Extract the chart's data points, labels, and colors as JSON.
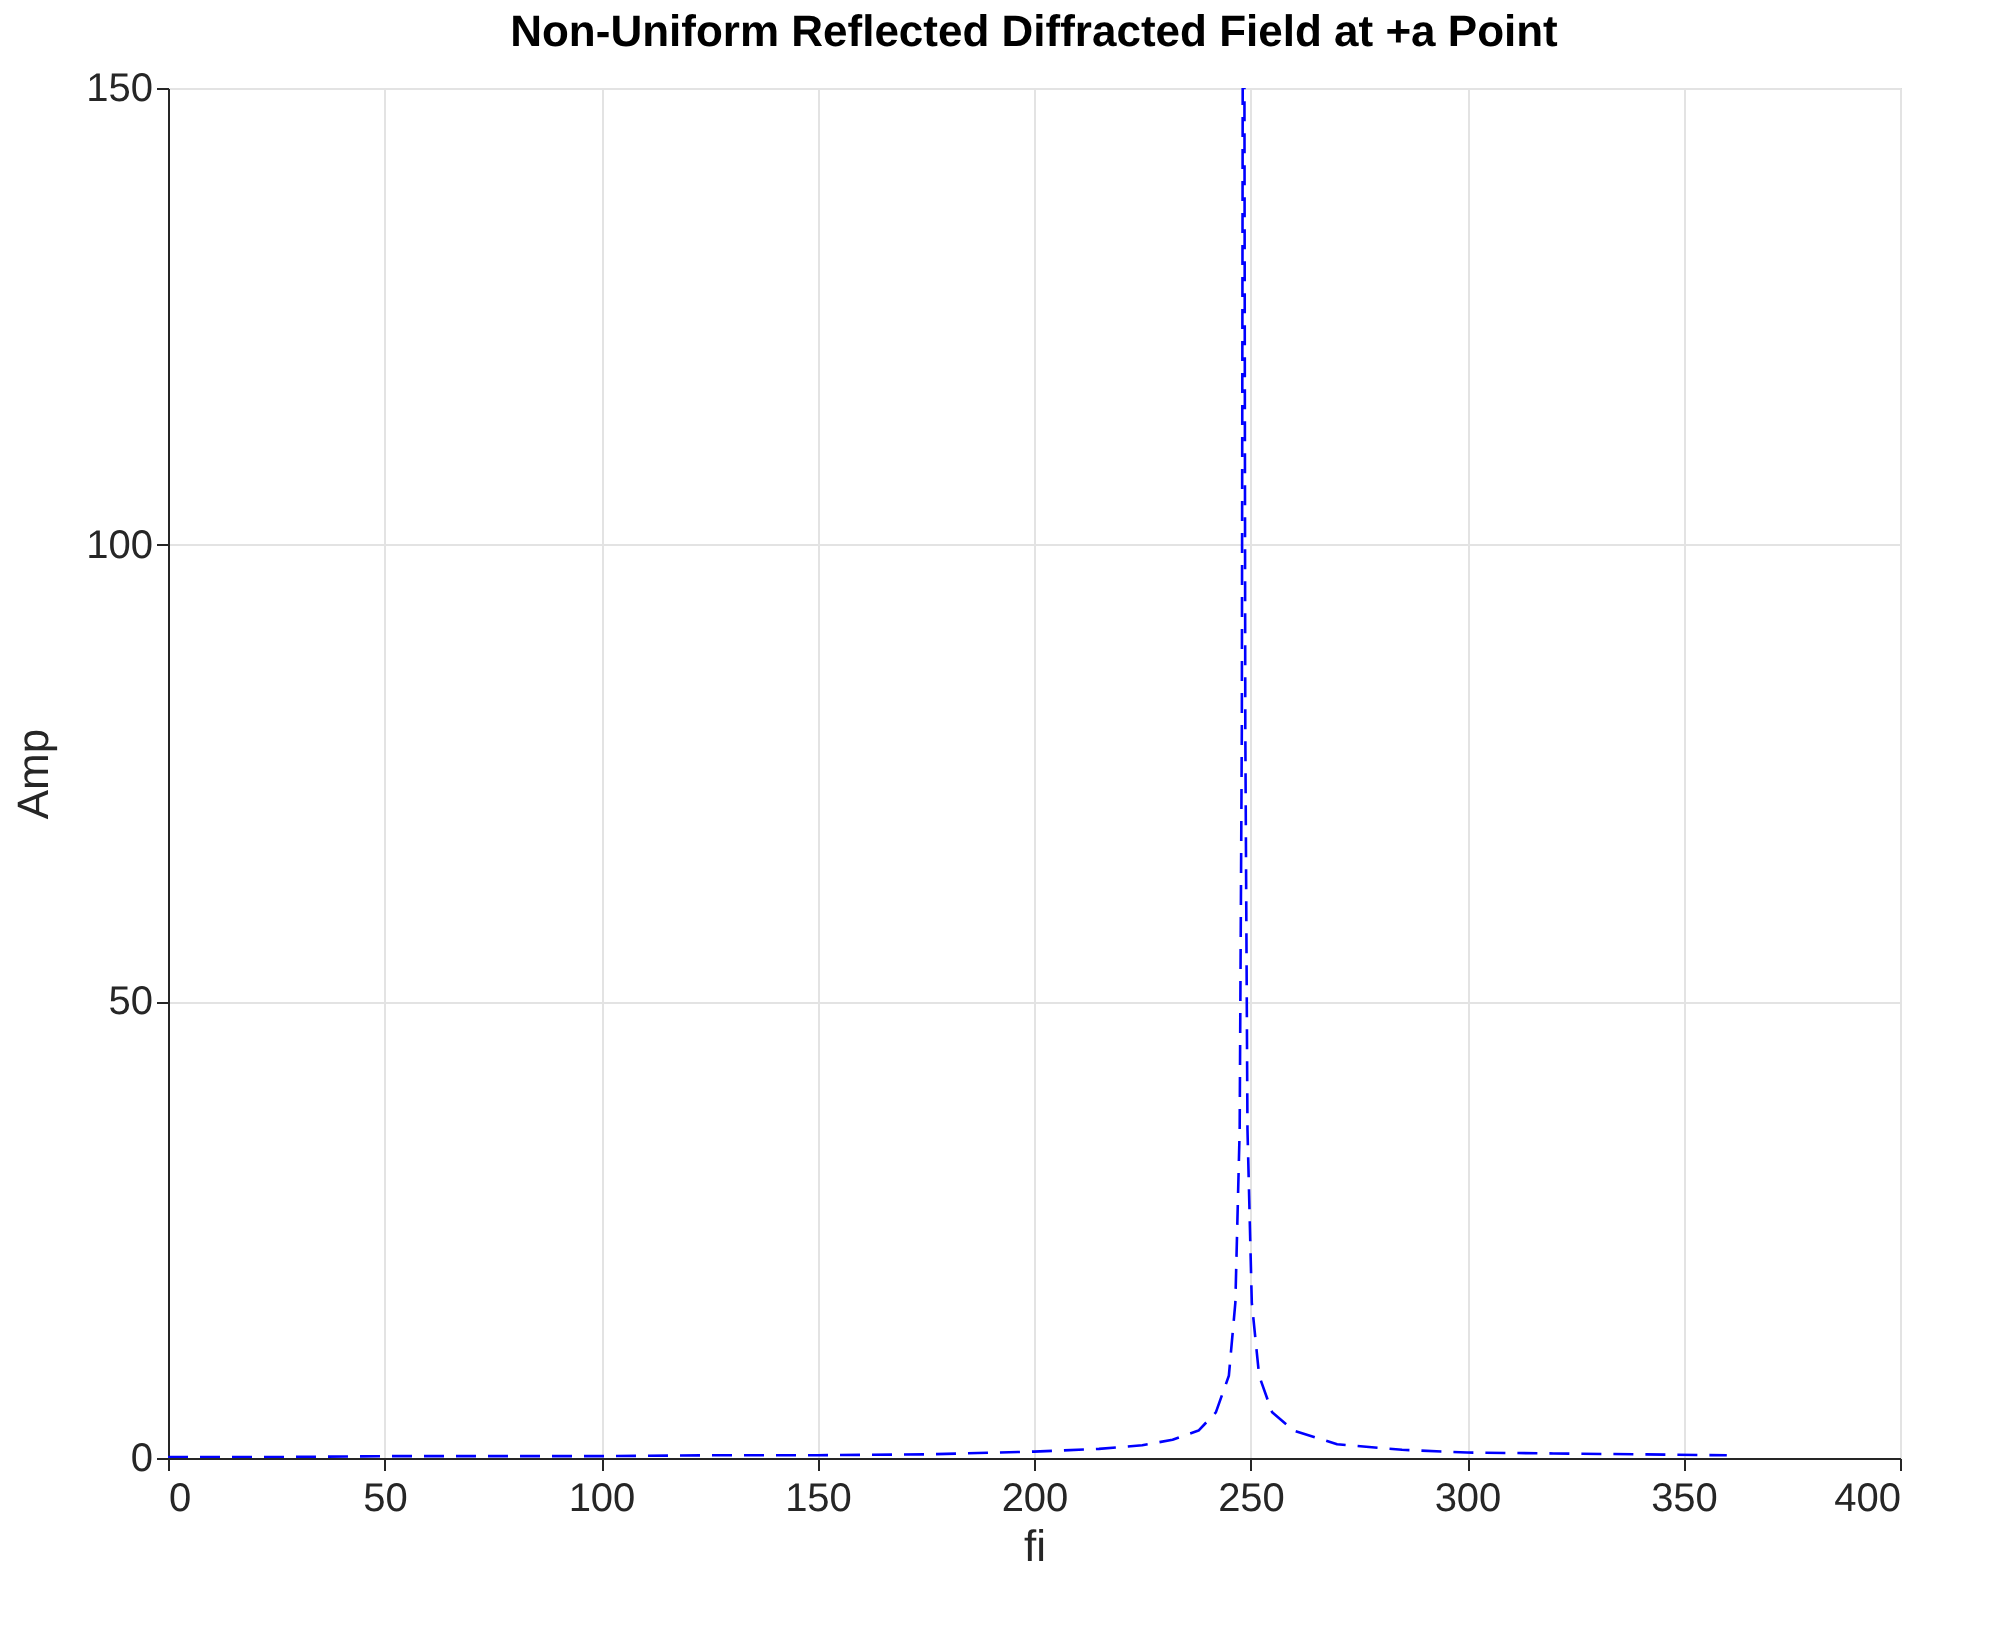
{
  "chart_data": {
    "type": "line",
    "title": "Non-Uniform Reflected Diffracted Field at +a Point",
    "xlabel": "fi",
    "ylabel": "Amp",
    "x": [
      0,
      25,
      50,
      75,
      100,
      125,
      150,
      175,
      200,
      215,
      225,
      232,
      238,
      242,
      245,
      246.5,
      247.5,
      248,
      248.2,
      248.6,
      248.8,
      249.3,
      250.3,
      252,
      255,
      260,
      270,
      285,
      300,
      320,
      340,
      360
    ],
    "series": [
      {
        "color": "#0000ff",
        "values": [
          0.1,
          0.1,
          0.2,
          0.2,
          0.2,
          0.3,
          0.3,
          0.4,
          0.7,
          1,
          1.4,
          2,
          3,
          5,
          9,
          17,
          36,
          80,
          150,
          150,
          80,
          36,
          17,
          9,
          5,
          3,
          1.5,
          0.9,
          0.6,
          0.5,
          0.4,
          0.3
        ]
      }
    ],
    "xlim": [
      0,
      400
    ],
    "xticks": [
      0,
      50,
      100,
      150,
      200,
      250,
      300,
      350,
      400
    ],
    "ylim": [
      0,
      150
    ],
    "yticks": [
      0,
      50,
      100,
      150
    ],
    "grid": true,
    "marker": "none",
    "line_style": "dashed"
  }
}
